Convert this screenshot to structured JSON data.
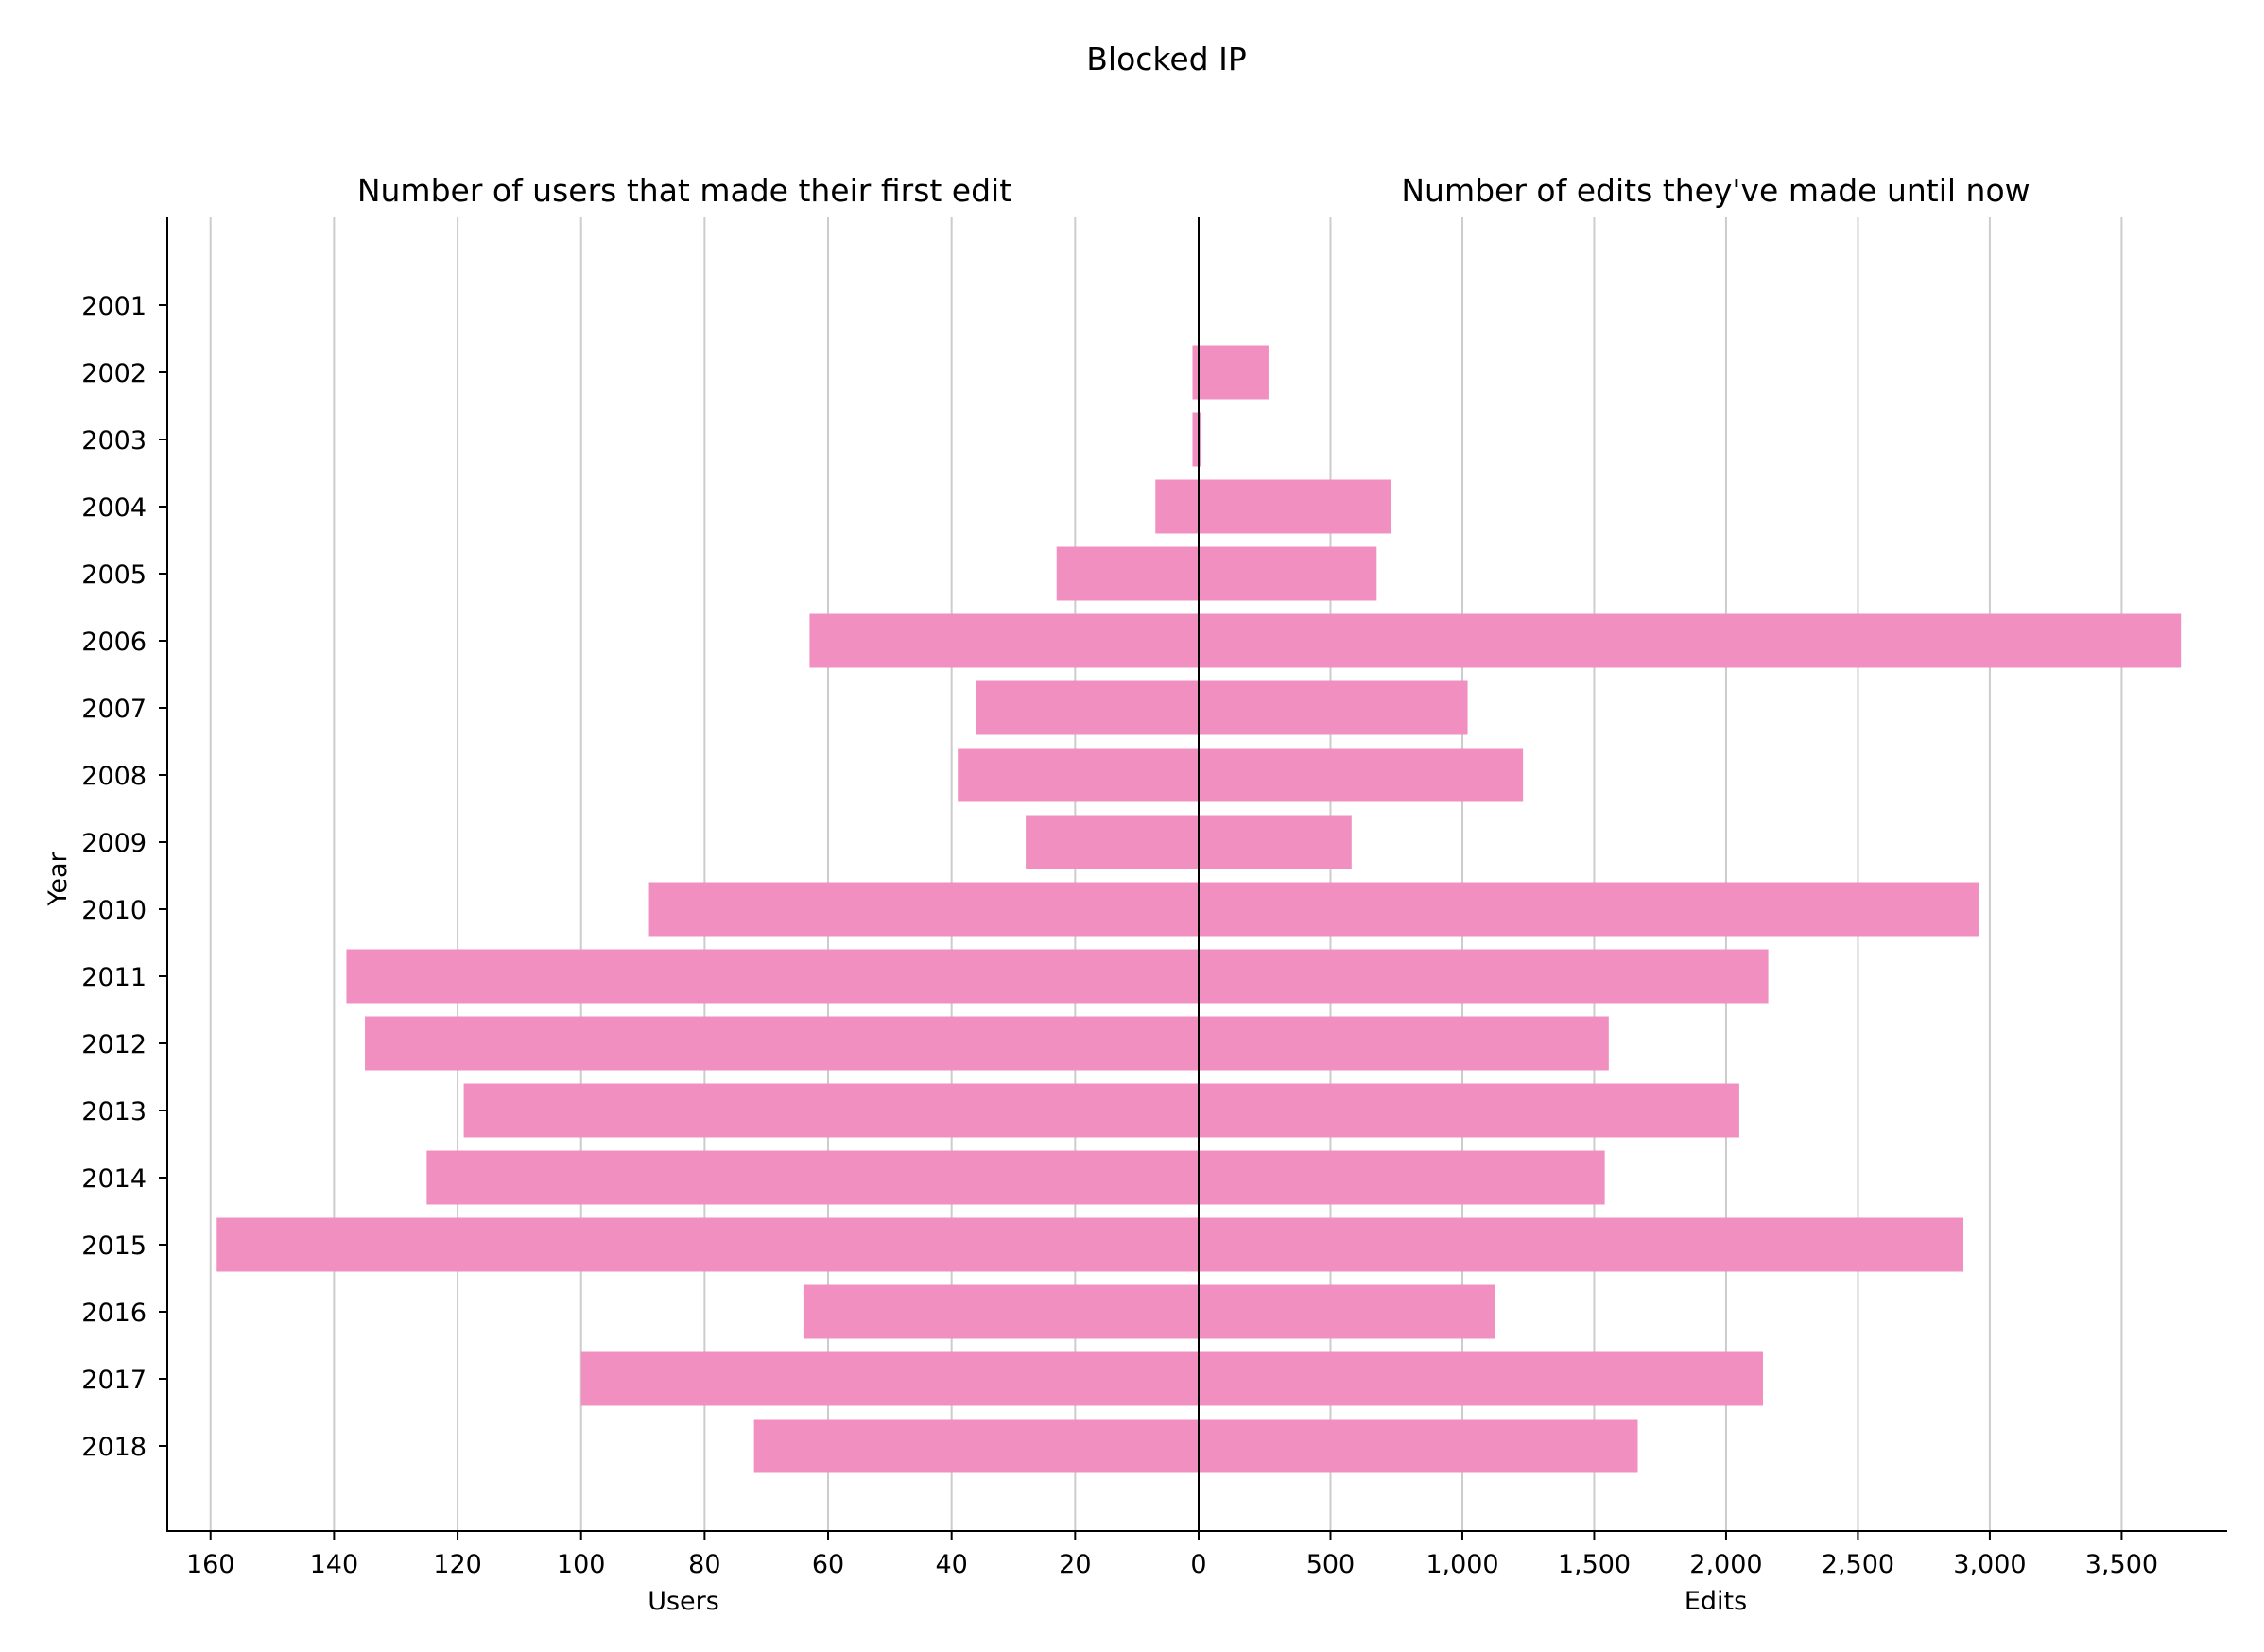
{
  "chart_data": {
    "type": "bar",
    "title": "Blocked IP",
    "orientation": "horizontal-butterfly",
    "ylabel": "Year",
    "categories": [
      "2001",
      "2002",
      "2003",
      "2004",
      "2005",
      "2006",
      "2007",
      "2008",
      "2009",
      "2010",
      "2011",
      "2012",
      "2013",
      "2014",
      "2015",
      "2016",
      "2017",
      "2018"
    ],
    "bar_color": "#f08fc0",
    "left_panel": {
      "subtitle": "Number of users that made their first edit",
      "xlabel": "Users",
      "xlim": [
        0,
        167
      ],
      "ticks": [
        0,
        20,
        40,
        60,
        80,
        100,
        120,
        140,
        160
      ],
      "tick_labels": [
        "0",
        "20",
        "40",
        "60",
        "80",
        "100",
        "120",
        "140",
        "160"
      ],
      "values": [
        0,
        1,
        1,
        7,
        23,
        63,
        36,
        39,
        28,
        89,
        138,
        135,
        119,
        125,
        159,
        64,
        100,
        72
      ]
    },
    "right_panel": {
      "subtitle": "Number of edits they've made until now",
      "xlabel": "Edits",
      "xlim": [
        0,
        3900
      ],
      "ticks": [
        0,
        500,
        1000,
        1500,
        2000,
        2500,
        3000,
        3500
      ],
      "tick_labels": [
        "0",
        "500",
        "1,000",
        "1,500",
        "2,000",
        "2,500",
        "3,000",
        "3,500"
      ],
      "values": [
        0,
        265,
        10,
        730,
        675,
        3725,
        1020,
        1230,
        580,
        2960,
        2160,
        1555,
        2050,
        1540,
        2900,
        1125,
        2140,
        1665
      ]
    }
  }
}
